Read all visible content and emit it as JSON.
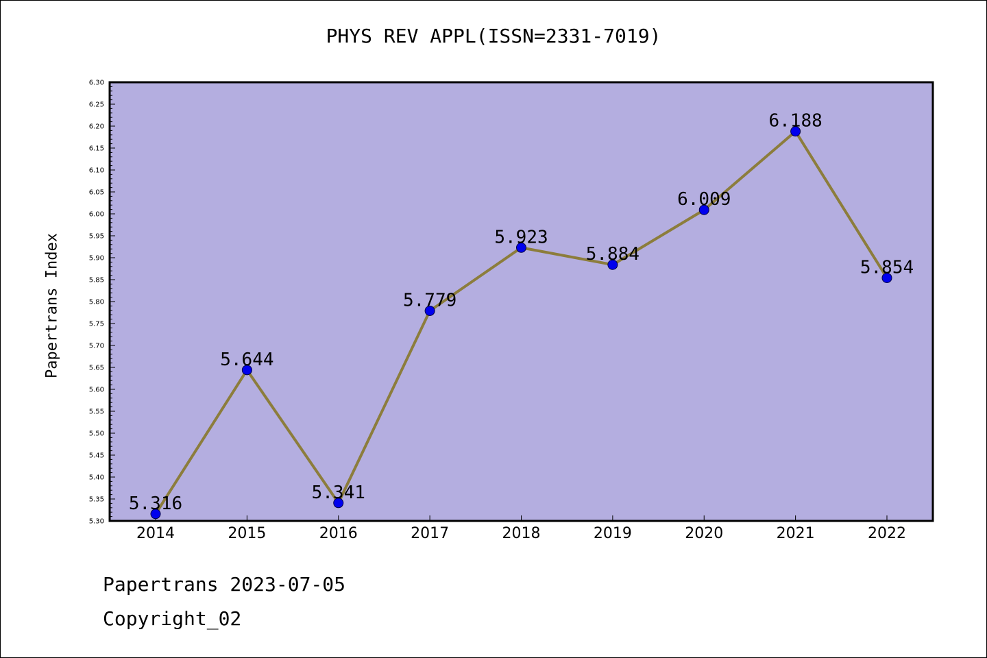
{
  "footer": {
    "line1": "Papertrans 2023-07-05",
    "line2": "Copyright_02"
  },
  "colors": {
    "plot_background": "#b4aee0",
    "line": "#8c7d3c",
    "marker": "#0000ee"
  },
  "chart_data": {
    "type": "line",
    "title": "PHYS REV APPL(ISSN=2331-7019)",
    "xlabel": "",
    "ylabel": "Papertrans Index",
    "categories": [
      "2014",
      "2015",
      "2016",
      "2017",
      "2018",
      "2019",
      "2020",
      "2021",
      "2022"
    ],
    "values": [
      5.316,
      5.644,
      5.341,
      5.779,
      5.923,
      5.884,
      6.009,
      6.188,
      5.854
    ],
    "data_labels": [
      "5.316",
      "5.644",
      "5.341",
      "5.779",
      "5.923",
      "5.884",
      "6.009",
      "6.188",
      "5.854"
    ],
    "ylim": [
      5.3,
      6.3
    ],
    "y_ticks": [
      "5.30",
      "5.35",
      "5.40",
      "5.45",
      "5.50",
      "5.55",
      "5.60",
      "5.65",
      "5.70",
      "5.75",
      "5.80",
      "5.85",
      "5.90",
      "5.95",
      "6.00",
      "6.05",
      "6.10",
      "6.15",
      "6.20",
      "6.25",
      "6.30"
    ],
    "grid": false,
    "legend": "none"
  }
}
